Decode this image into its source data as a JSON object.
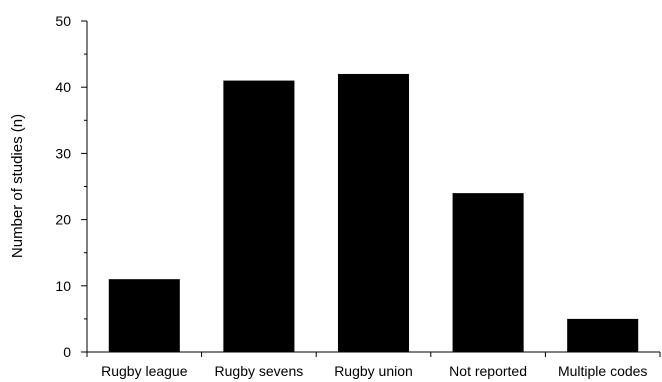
{
  "chart_data": {
    "type": "bar",
    "title": "",
    "xlabel": "",
    "ylabel": "Number of studies (n)",
    "categories": [
      "Rugby league",
      "Rugby sevens",
      "Rugby union",
      "Not reported",
      "Multiple codes"
    ],
    "values": [
      11,
      41,
      42,
      24,
      5
    ],
    "ylim": [
      0,
      50
    ],
    "yticks": [
      0,
      10,
      20,
      30,
      40,
      50
    ],
    "ytick_labels": [
      "0",
      "10",
      "20",
      "30",
      "40",
      "50"
    ],
    "grid": false,
    "legend": "none",
    "bar_color": "#000000",
    "axis_color": "#000000"
  }
}
